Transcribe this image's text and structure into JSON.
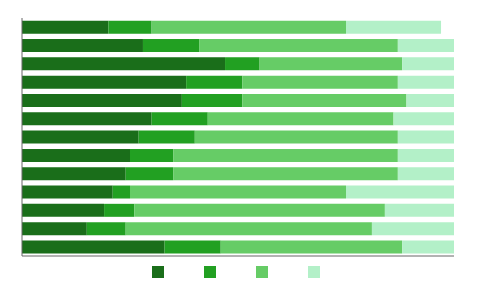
{
  "chart_data": {
    "type": "bar",
    "orientation": "horizontal",
    "stacked": true,
    "tick_labels": false,
    "legend": "bottom",
    "categories": [
      null,
      null,
      null,
      null,
      null,
      null,
      null,
      null,
      null,
      null,
      null,
      null,
      null
    ],
    "xlim": [
      0,
      100
    ],
    "series": [
      {
        "color": "#1a6e1a",
        "values": [
          20,
          28,
          47,
          38,
          37,
          30,
          27,
          25,
          24,
          21,
          19,
          15,
          33
        ]
      },
      {
        "color": "#22a022",
        "values": [
          10,
          13,
          8,
          13,
          14,
          13,
          13,
          10,
          11,
          4,
          7,
          9,
          13
        ]
      },
      {
        "color": "#66cc66",
        "values": [
          45,
          46,
          33,
          36,
          38,
          43,
          47,
          52,
          52,
          50,
          58,
          57,
          42
        ]
      },
      {
        "color": "#b3f0c8",
        "values": [
          22,
          13,
          12,
          13,
          11,
          14,
          13,
          13,
          13,
          25,
          16,
          19,
          12
        ]
      }
    ]
  }
}
